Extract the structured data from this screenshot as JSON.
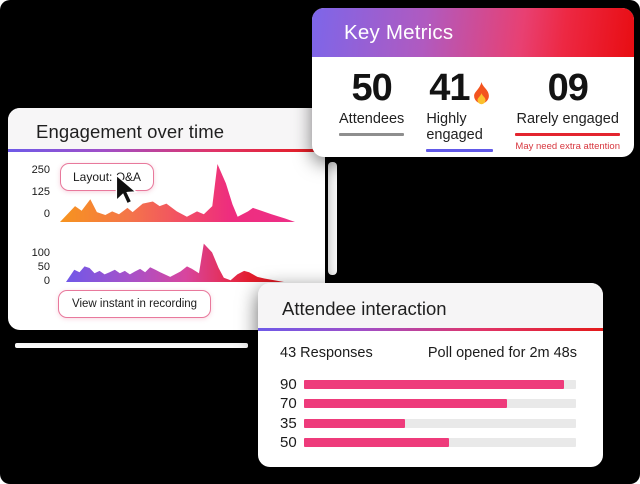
{
  "engagement_card": {
    "title": "Engagement over time",
    "tooltip_label": "Layout: Q&A",
    "button_label": "View instant in recording"
  },
  "key_metrics_card": {
    "title": "Key Metrics",
    "metrics": [
      {
        "value": "50",
        "label": "Attendees",
        "underline_color": "#8E8E8E",
        "note": ""
      },
      {
        "value": "41",
        "label": "Highly engaged",
        "underline_color": "#6159E8",
        "note": "",
        "icon": "flame"
      },
      {
        "value": "09",
        "label": "Rarely engaged",
        "underline_color": "#E3242E",
        "note": "May need extra attention",
        "note_color": "#D7373F"
      }
    ]
  },
  "attendee_card": {
    "title": "Attendee interaction",
    "responses_label": "43 Responses",
    "poll_status_label": "Poll opened for 2m 48s"
  },
  "chart_data": [
    {
      "type": "area",
      "name": "engagement-1",
      "title": "Engagement over time (upper)",
      "y_ticks": [
        "250",
        "125",
        "0"
      ],
      "ylim": [
        0,
        300
      ],
      "ymax": 300,
      "x": [
        0,
        0.064,
        0.092,
        0.129,
        0.157,
        0.193,
        0.222,
        0.251,
        0.287,
        0.309,
        0.352,
        0.395,
        0.424,
        0.453,
        0.497,
        0.54,
        0.583,
        0.612,
        0.648,
        0.67,
        0.706,
        0.734,
        0.756,
        0.8,
        0.821,
        0.857,
        0.9,
        0.958,
        1
      ],
      "values": [
        0,
        82,
        58,
        118,
        51,
        36,
        55,
        40,
        73,
        51,
        95,
        106,
        82,
        95,
        55,
        27,
        55,
        40,
        82,
        300,
        200,
        91,
        27,
        55,
        73,
        58,
        40,
        18,
        0
      ],
      "gradient": [
        {
          "at": 0,
          "color": "#F7941E"
        },
        {
          "at": 30,
          "color": "#F4744A"
        },
        {
          "at": 55,
          "color": "#F14A68"
        },
        {
          "at": 72,
          "color": "#EE2D7E"
        },
        {
          "at": 100,
          "color": "#ED2F87"
        }
      ]
    },
    {
      "type": "area",
      "name": "engagement-2",
      "title": "Engagement over time (lower)",
      "y_ticks": [
        "100",
        "50",
        "0"
      ],
      "ylim": [
        0,
        175
      ],
      "ymax": 175,
      "x": [
        0,
        0.038,
        0.062,
        0.085,
        0.108,
        0.131,
        0.154,
        0.177,
        0.2,
        0.224,
        0.247,
        0.27,
        0.293,
        0.316,
        0.34,
        0.363,
        0.386,
        0.41,
        0.432,
        0.478,
        0.525,
        0.555,
        0.578,
        0.61,
        0.632,
        0.67,
        0.7,
        0.724,
        0.755,
        0.786,
        0.817,
        0.84,
        0.878,
        0.91,
        1
      ],
      "values": [
        0,
        55,
        44,
        70,
        63,
        39,
        50,
        34,
        44,
        55,
        39,
        50,
        34,
        47,
        59,
        44,
        66,
        55,
        44,
        23,
        47,
        70,
        59,
        39,
        172,
        133,
        63,
        19,
        8,
        34,
        50,
        44,
        23,
        16,
        0
      ],
      "gradient": [
        {
          "at": 0,
          "color": "#7058E8"
        },
        {
          "at": 30,
          "color": "#A851C8"
        },
        {
          "at": 55,
          "color": "#D8459E"
        },
        {
          "at": 72,
          "color": "#E3305C"
        },
        {
          "at": 85,
          "color": "#E31D2C"
        },
        {
          "at": 100,
          "color": "#DF1822"
        }
      ]
    },
    {
      "type": "bar",
      "name": "attendee-poll",
      "title": "Attendee interaction poll",
      "categories": [
        "90",
        "70",
        "35",
        "50"
      ],
      "values": [
        90,
        70,
        35,
        50
      ],
      "xmax": 94,
      "bar_color": "#EE3B7B",
      "track_color": "#E9E9E9"
    }
  ]
}
